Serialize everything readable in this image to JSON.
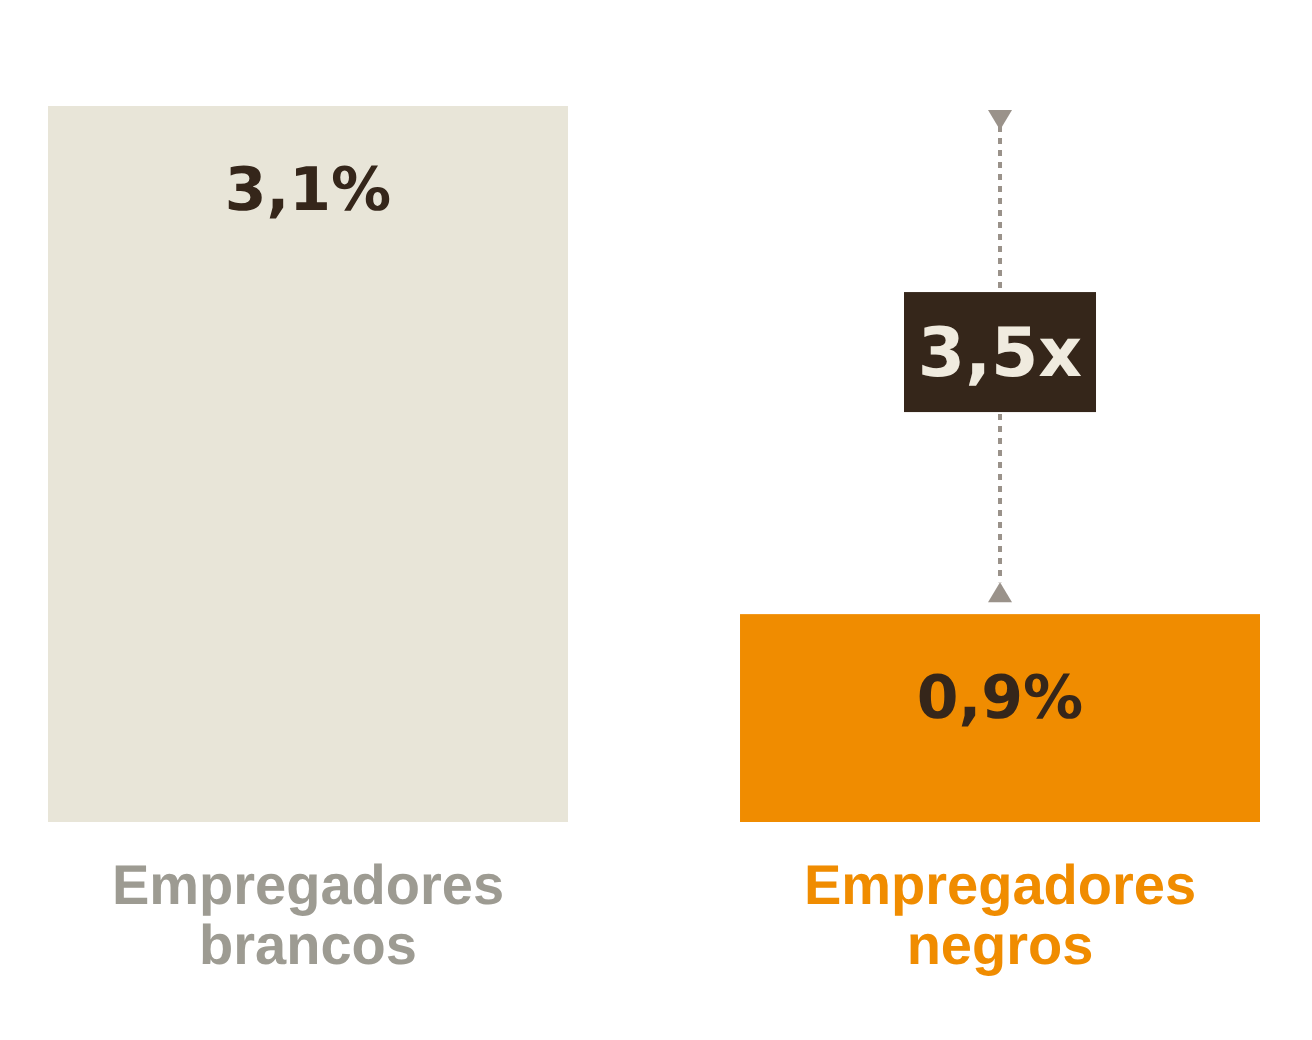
{
  "chart_data": {
    "type": "bar",
    "categories": [
      "Empregadores brancos",
      "Empregadores negros"
    ],
    "values": [
      3.1,
      0.9
    ],
    "colors": [
      "#e8e5d8",
      "#f08c00"
    ],
    "value_labels": [
      "3,1%",
      "0,9%"
    ],
    "annotations": [
      "3,5x"
    ]
  }
}
